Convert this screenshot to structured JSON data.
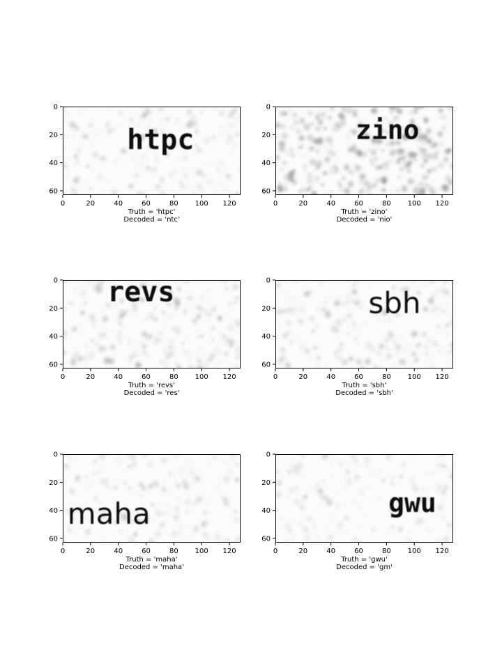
{
  "chart_data": [
    {
      "type": "image",
      "image_text": "htpc",
      "truth_label": "Truth = 'htpc'",
      "decoded_label": "Decoded = 'ntc'",
      "font_style": "serif",
      "text_x": 0.55,
      "text_y": 0.37,
      "font_scale": 1.0,
      "noise": 0.35,
      "xlim": [
        0,
        128
      ],
      "ylim": [
        63,
        0
      ],
      "xticks": [
        0,
        20,
        40,
        60,
        80,
        100,
        120
      ],
      "yticks": [
        0,
        20,
        40,
        60
      ]
    },
    {
      "type": "image",
      "image_text": "zino",
      "truth_label": "Truth = 'zino'",
      "decoded_label": "Decoded = 'nio'",
      "font_style": "serif",
      "text_x": 0.63,
      "text_y": 0.26,
      "font_scale": 0.95,
      "noise": 0.9,
      "xlim": [
        0,
        128
      ],
      "ylim": [
        63,
        0
      ],
      "xticks": [
        0,
        20,
        40,
        60,
        80,
        100,
        120
      ],
      "yticks": [
        0,
        20,
        40,
        60
      ]
    },
    {
      "type": "image",
      "image_text": "revs",
      "truth_label": "Truth = 'revs'",
      "decoded_label": "Decoded = 'res'",
      "font_style": "serif",
      "text_x": 0.44,
      "text_y": 0.13,
      "font_scale": 1.0,
      "noise": 0.45,
      "xlim": [
        0,
        128
      ],
      "ylim": [
        63,
        0
      ],
      "xticks": [
        0,
        20,
        40,
        60,
        80,
        100,
        120
      ],
      "yticks": [
        0,
        20,
        40,
        60
      ]
    },
    {
      "type": "image",
      "image_text": "sbh",
      "truth_label": "Truth = 'sbh'",
      "decoded_label": "Decoded = 'sbh'",
      "font_style": "sans",
      "text_x": 0.67,
      "text_y": 0.26,
      "font_scale": 1.0,
      "noise": 0.4,
      "xlim": [
        0,
        128
      ],
      "ylim": [
        63,
        0
      ],
      "xticks": [
        0,
        20,
        40,
        60,
        80,
        100,
        120
      ],
      "yticks": [
        0,
        20,
        40,
        60
      ]
    },
    {
      "type": "image",
      "image_text": "maha",
      "truth_label": "Truth = 'maha'",
      "decoded_label": "Decoded = 'maha'",
      "font_style": "sans",
      "text_x": 0.26,
      "text_y": 0.67,
      "font_scale": 1.0,
      "noise": 0.3,
      "xlim": [
        0,
        128
      ],
      "ylim": [
        63,
        0
      ],
      "xticks": [
        0,
        20,
        40,
        60,
        80,
        100,
        120
      ],
      "yticks": [
        0,
        20,
        40,
        60
      ]
    },
    {
      "type": "image",
      "image_text": "gwu",
      "truth_label": "Truth = 'gwu'",
      "decoded_label": "Decoded = 'gm'",
      "font_style": "serif",
      "text_x": 0.77,
      "text_y": 0.55,
      "font_scale": 0.95,
      "noise": 0.25,
      "xlim": [
        0,
        128
      ],
      "ylim": [
        63,
        0
      ],
      "xticks": [
        0,
        20,
        40,
        60,
        80,
        100,
        120
      ],
      "yticks": [
        0,
        20,
        40,
        60
      ]
    }
  ]
}
